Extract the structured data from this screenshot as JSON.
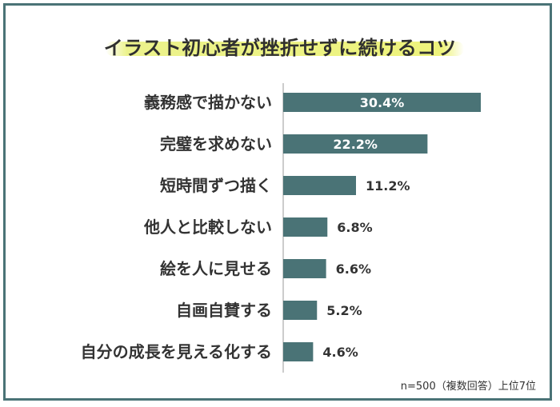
{
  "title": "イラスト初心者が挫折せずに続けるコツ",
  "note": "n=500（複数回答）上位7位",
  "colors": {
    "bar": "#4a7376",
    "frame": "#4a7376",
    "highlight": "#e8f078",
    "axis": "#999999"
  },
  "chart_data": {
    "type": "bar",
    "orientation": "horizontal",
    "title": "イラスト初心者が挫折せずに続けるコツ",
    "categories": [
      "義務感で描かない",
      "完璧を求めない",
      "短時間ずつ描く",
      "他人と比較しない",
      "絵を人に見せる",
      "自画自賛する",
      "自分の成長を見える化する"
    ],
    "values": [
      30.4,
      22.2,
      11.2,
      6.8,
      6.6,
      5.2,
      4.6
    ],
    "value_labels": [
      "30.4%",
      "22.2%",
      "11.2%",
      "6.8%",
      "6.6%",
      "5.2%",
      "4.6%"
    ],
    "xlim": [
      0,
      30.4
    ],
    "grid": false,
    "legend": "none"
  }
}
